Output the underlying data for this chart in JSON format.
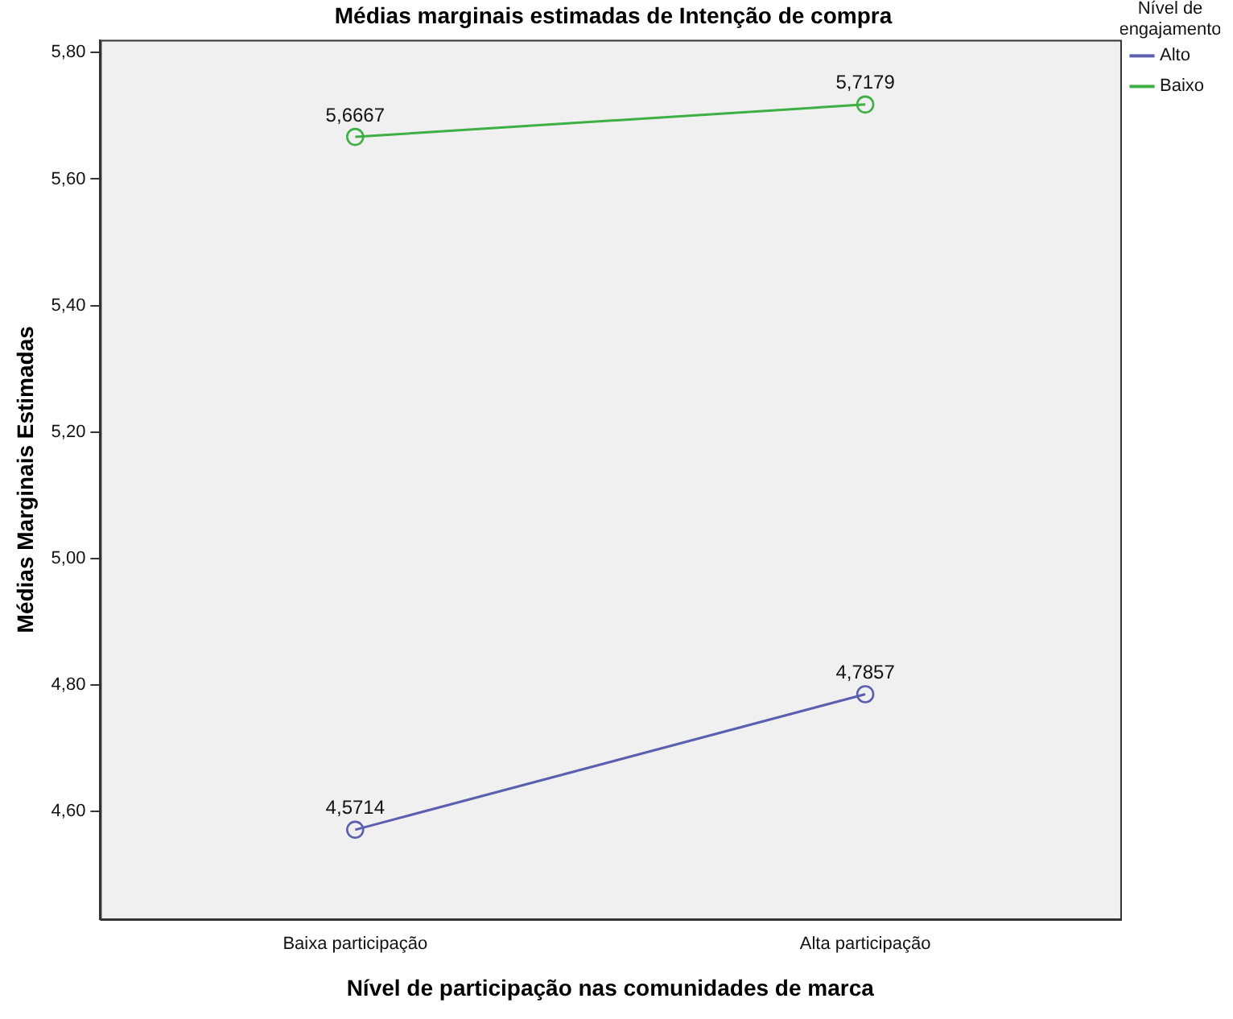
{
  "chart_data": {
    "type": "line",
    "title": "Médias marginais estimadas de Intenção de compra",
    "xlabel": "Nível de participação nas comunidades de marca",
    "ylabel": "Médias Marginais Estimadas",
    "legend_title": "Nível de\nengajamento",
    "legend": "top right",
    "marker": "circle",
    "grid": false,
    "categories": [
      "Baixa participação",
      "Alta participação"
    ],
    "series": [
      {
        "name": "Alto",
        "color": "#5a5fb0",
        "values": [
          4.5714,
          4.7857
        ],
        "value_labels": [
          "4,5714",
          "4,7857"
        ]
      },
      {
        "name": "Baixo",
        "color": "#3cb043",
        "values": [
          5.6667,
          5.7179
        ],
        "value_labels": [
          "5,6667",
          "5,7179"
        ]
      }
    ],
    "ylim": [
      4.43,
      5.82
    ],
    "yticks": [
      {
        "value": 4.6,
        "label": "4,60"
      },
      {
        "value": 4.8,
        "label": "4,80"
      },
      {
        "value": 5.0,
        "label": "5,00"
      },
      {
        "value": 5.2,
        "label": "5,20"
      },
      {
        "value": 5.4,
        "label": "5,40"
      },
      {
        "value": 5.6,
        "label": "5,60"
      },
      {
        "value": 5.8,
        "label": "5,80"
      }
    ]
  }
}
